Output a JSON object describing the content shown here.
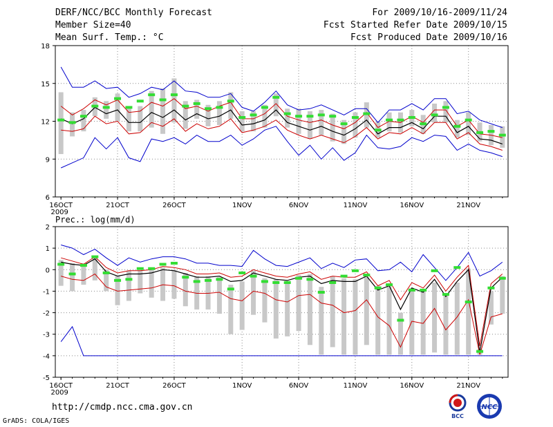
{
  "header": {
    "left": [
      "DERF/NCC/BCC Monthly Forecast",
      "Member Size=40",
      "Mean Surf. Temp.: °C"
    ],
    "right": [
      "For 2009/10/16-2009/11/24",
      "Fcst Started Refer Date 2009/10/15",
      "Fcst Produced Date 2009/10/16"
    ]
  },
  "panel2_title": "Prec.: log(mm/d)",
  "footer": {
    "url": "http://cmdp.ncc.cma.gov.cn",
    "credit": "GrADS: COLA/IGES"
  },
  "logos": {
    "bcc": "BCC",
    "ncc": "NCC"
  },
  "colors": {
    "max": "#0000cc",
    "min": "#0000cc",
    "mean": "#000000",
    "spread": "#cc0000",
    "box": "#c8c8c8",
    "median": "#33dd33"
  },
  "chart_data": [
    {
      "type": "box-ensemble",
      "title": "Mean Surf. Temp.: °C",
      "xticks": [
        "16OCT",
        "21OCT",
        "26OCT",
        "1NOV",
        "6NOV",
        "11NOV",
        "16NOV",
        "21NOV"
      ],
      "xticks_day": [
        1,
        6,
        11,
        17,
        22,
        27,
        32,
        37
      ],
      "x_year": "2009",
      "days": 40,
      "ylim": [
        6,
        18
      ],
      "yticks": [
        6,
        9,
        12,
        15,
        18
      ],
      "series": [
        {
          "name": "max",
          "values": [
            16.3,
            14.7,
            14.7,
            15.2,
            14.6,
            14.7,
            13.9,
            14.2,
            14.7,
            14.5,
            15.2,
            14.4,
            14.3,
            13.9,
            13.9,
            14.2,
            13.1,
            12.8,
            13.5,
            14.4,
            13.3,
            12.9,
            13.0,
            13.3,
            12.9,
            12.5,
            13.0,
            13.0,
            11.9,
            12.9,
            12.9,
            13.4,
            12.9,
            13.8,
            13.8,
            12.6,
            12.8,
            12.1,
            11.8,
            11.5
          ]
        },
        {
          "name": "plus_sd",
          "values": [
            13.2,
            12.5,
            13.0,
            13.7,
            13.3,
            13.7,
            12.7,
            12.8,
            13.5,
            13.2,
            13.8,
            13.0,
            13.2,
            12.8,
            13.2,
            13.5,
            12.2,
            12.2,
            12.6,
            13.4,
            12.4,
            12.1,
            11.9,
            12.1,
            11.7,
            11.4,
            11.9,
            12.7,
            11.5,
            12.0,
            11.9,
            12.4,
            11.9,
            12.9,
            12.9,
            11.6,
            12.1,
            11.0,
            10.9,
            10.7
          ]
        },
        {
          "name": "mean",
          "values": [
            12.2,
            11.8,
            12.2,
            13.1,
            12.6,
            12.9,
            11.9,
            11.9,
            12.7,
            12.3,
            12.9,
            12.1,
            12.6,
            12.2,
            12.4,
            12.9,
            11.7,
            11.8,
            12.1,
            12.9,
            11.9,
            11.6,
            11.3,
            11.6,
            11.2,
            10.9,
            11.4,
            12.1,
            11.0,
            11.5,
            11.5,
            11.9,
            11.4,
            12.4,
            12.4,
            11.1,
            11.6,
            10.6,
            10.5,
            10.2
          ]
        },
        {
          "name": "minus_sd",
          "values": [
            11.3,
            11.2,
            11.4,
            12.4,
            11.8,
            12.0,
            11.0,
            11.1,
            11.9,
            11.6,
            12.2,
            11.2,
            11.8,
            11.4,
            11.6,
            12.2,
            11.1,
            11.3,
            11.6,
            12.1,
            11.3,
            10.9,
            10.6,
            10.9,
            10.6,
            10.3,
            10.8,
            11.5,
            10.6,
            11.1,
            11.0,
            11.5,
            11.0,
            11.9,
            11.9,
            10.6,
            11.1,
            10.2,
            10.0,
            9.7
          ]
        },
        {
          "name": "min",
          "values": [
            8.3,
            8.7,
            9.1,
            10.7,
            9.8,
            10.7,
            9.1,
            8.8,
            10.6,
            10.4,
            10.7,
            10.2,
            10.9,
            10.4,
            10.4,
            10.9,
            10.1,
            10.6,
            11.3,
            11.6,
            10.4,
            9.3,
            10.1,
            9.0,
            9.9,
            8.9,
            9.5,
            10.9,
            9.9,
            9.8,
            10.0,
            10.7,
            10.4,
            10.9,
            10.8,
            9.7,
            10.2,
            9.7,
            9.5,
            9.2
          ]
        },
        {
          "name": "box_hi",
          "values": [
            14.3,
            12.7,
            12.9,
            13.9,
            13.6,
            14.2,
            13.1,
            13.2,
            14.4,
            14.6,
            15.4,
            13.6,
            13.7,
            13.3,
            13.6,
            14.3,
            12.8,
            12.8,
            13.3,
            14.2,
            13.0,
            13.0,
            12.8,
            12.9,
            12.6,
            12.1,
            12.7,
            13.5,
            12.0,
            12.7,
            12.7,
            12.9,
            12.5,
            13.4,
            13.6,
            12.1,
            12.7,
            11.9,
            11.7,
            11.6
          ]
        },
        {
          "name": "box_lo",
          "values": [
            9.4,
            10.8,
            11.2,
            12.4,
            12.2,
            12.0,
            11.2,
            11.2,
            11.5,
            11.0,
            11.9,
            11.4,
            12.2,
            11.6,
            11.7,
            12.2,
            11.2,
            11.2,
            11.5,
            12.4,
            11.5,
            11.0,
            10.6,
            10.9,
            10.4,
            10.2,
            10.7,
            11.5,
            10.7,
            11.2,
            11.1,
            11.6,
            11.0,
            11.9,
            11.9,
            10.7,
            10.9,
            10.4,
            10.1,
            9.9
          ]
        },
        {
          "name": "median",
          "values": [
            12.1,
            11.9,
            12.4,
            13.2,
            13.1,
            13.8,
            13.1,
            13.6,
            14.1,
            13.7,
            14.1,
            13.2,
            13.4,
            13.0,
            13.1,
            13.6,
            12.3,
            12.5,
            13.1,
            13.9,
            12.6,
            12.4,
            12.4,
            12.5,
            12.4,
            11.8,
            12.3,
            12.6,
            11.3,
            12.1,
            12.1,
            12.3,
            11.8,
            12.5,
            13.1,
            11.6,
            12.1,
            11.1,
            11.2,
            10.9
          ]
        }
      ]
    },
    {
      "type": "box-ensemble",
      "title": "Prec.: log(mm/d)",
      "xticks": [
        "16OCT",
        "21OCT",
        "26OCT",
        "1NOV",
        "6NOV",
        "11NOV",
        "16NOV",
        "21NOV"
      ],
      "xticks_day": [
        1,
        6,
        11,
        17,
        22,
        27,
        32,
        37
      ],
      "x_year": "2009",
      "days": 40,
      "ylim": [
        -5,
        2
      ],
      "yticks": [
        -5,
        -4,
        -3,
        -2,
        -1,
        0,
        1,
        2
      ],
      "series": [
        {
          "name": "max",
          "values": [
            1.15,
            1.0,
            0.7,
            0.95,
            0.55,
            0.2,
            0.55,
            0.35,
            0.5,
            0.6,
            0.6,
            0.5,
            0.3,
            0.3,
            0.2,
            0.2,
            0.15,
            0.9,
            0.5,
            0.2,
            0.15,
            0.35,
            0.55,
            0.05,
            0.3,
            0.1,
            0.45,
            0.5,
            -0.05,
            0.0,
            0.35,
            -0.1,
            0.7,
            0.1,
            -0.5,
            0.1,
            0.8,
            -0.3,
            -0.05,
            0.35
          ]
        },
        {
          "name": "plus_sd",
          "values": [
            0.55,
            0.4,
            0.25,
            0.6,
            0.1,
            -0.15,
            -0.05,
            -0.05,
            0.0,
            0.15,
            0.1,
            0.0,
            -0.2,
            -0.2,
            -0.15,
            -0.35,
            -0.3,
            0.0,
            -0.15,
            -0.3,
            -0.35,
            -0.2,
            -0.1,
            -0.45,
            -0.3,
            -0.35,
            -0.35,
            -0.1,
            -0.75,
            -0.5,
            -1.4,
            -0.6,
            -0.85,
            -0.25,
            -1.0,
            -0.35,
            0.2,
            -3.55,
            -0.65,
            -0.2
          ]
        },
        {
          "name": "mean",
          "values": [
            0.35,
            0.25,
            0.2,
            0.5,
            -0.1,
            -0.3,
            -0.2,
            -0.2,
            -0.15,
            0.0,
            -0.05,
            -0.2,
            -0.35,
            -0.35,
            -0.3,
            -0.55,
            -0.5,
            -0.15,
            -0.3,
            -0.45,
            -0.5,
            -0.35,
            -0.3,
            -0.65,
            -0.5,
            -0.55,
            -0.55,
            -0.3,
            -0.95,
            -0.75,
            -1.85,
            -0.85,
            -1.05,
            -0.45,
            -1.25,
            -0.55,
            0.0,
            -3.85,
            -0.85,
            -0.35
          ]
        },
        {
          "name": "minus_sd",
          "values": [
            -0.3,
            -0.45,
            -0.5,
            -0.2,
            -0.8,
            -1.0,
            -0.95,
            -0.9,
            -0.85,
            -0.7,
            -0.75,
            -1.0,
            -1.1,
            -1.1,
            -1.05,
            -1.35,
            -1.45,
            -1.0,
            -1.1,
            -1.4,
            -1.5,
            -1.2,
            -1.15,
            -1.55,
            -1.65,
            -2.0,
            -1.9,
            -1.4,
            -2.2,
            -2.6,
            -3.6,
            -2.4,
            -2.5,
            -1.8,
            -2.8,
            -2.2,
            -1.4,
            -3.95,
            -2.2,
            -2.05
          ]
        },
        {
          "name": "min",
          "values": [
            -3.35,
            -2.65,
            -4.0,
            -4.0,
            -4.0,
            -4.0,
            -4.0,
            -4.0,
            -4.0,
            -4.0,
            -4.0,
            -4.0,
            -4.0,
            -4.0,
            -4.0,
            -4.0,
            -4.0,
            -4.0,
            -4.0,
            -4.0,
            -4.0,
            -4.0,
            -4.0,
            -4.0,
            -4.0,
            -4.0,
            -4.0,
            -4.0,
            -4.0,
            -4.0,
            -4.0,
            -4.0,
            -4.0,
            -4.0,
            -4.0,
            -4.0,
            -4.0,
            -4.0,
            -4.0,
            -4.0
          ]
        },
        {
          "name": "box_hi",
          "values": [
            0.45,
            0.3,
            0.3,
            0.55,
            0.0,
            -0.3,
            -0.05,
            -0.05,
            0.05,
            0.1,
            0.0,
            -0.15,
            -0.3,
            -0.3,
            -0.35,
            -0.7,
            -0.55,
            -0.05,
            -0.4,
            -0.45,
            -0.55,
            -0.25,
            -0.2,
            -0.8,
            -0.3,
            -0.4,
            -0.45,
            -0.35,
            -0.75,
            -0.65,
            -2.0,
            -0.85,
            -0.95,
            -0.6,
            -1.2,
            -0.6,
            0.05,
            -3.7,
            -1.0,
            -0.3
          ]
        },
        {
          "name": "box_lo",
          "values": [
            -0.75,
            -1.0,
            -0.7,
            -0.5,
            -1.0,
            -1.65,
            -1.45,
            -1.1,
            -1.3,
            -1.45,
            -1.35,
            -1.7,
            -1.85,
            -1.85,
            -2.05,
            -3.0,
            -2.8,
            -2.1,
            -2.45,
            -3.2,
            -3.1,
            -2.85,
            -3.5,
            -3.95,
            -3.6,
            -3.95,
            -3.95,
            -3.5,
            -3.95,
            -3.95,
            -3.95,
            -3.95,
            -3.95,
            -3.85,
            -3.95,
            -3.95,
            -3.95,
            -3.95,
            -2.55,
            -2.05
          ]
        },
        {
          "name": "median",
          "values": [
            0.25,
            -0.2,
            0.2,
            0.6,
            -0.15,
            -0.5,
            -0.45,
            0.05,
            0.05,
            0.25,
            0.3,
            -0.35,
            -0.55,
            -0.5,
            -0.45,
            -0.9,
            -0.15,
            -0.3,
            -0.55,
            -0.6,
            -0.6,
            -0.4,
            -0.45,
            -1.05,
            -0.6,
            -0.3,
            -0.05,
            -0.25,
            -0.85,
            -0.7,
            -2.35,
            -0.95,
            -0.95,
            -0.05,
            -1.15,
            0.1,
            -1.5,
            -3.8,
            -0.85,
            -0.4
          ]
        }
      ]
    }
  ]
}
